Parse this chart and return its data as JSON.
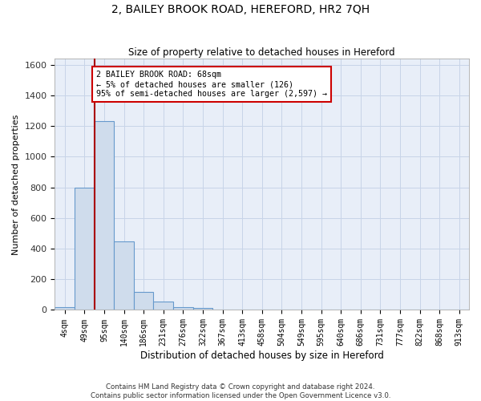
{
  "title": "2, BAILEY BROOK ROAD, HEREFORD, HR2 7QH",
  "subtitle": "Size of property relative to detached houses in Hereford",
  "xlabel": "Distribution of detached houses by size in Hereford",
  "ylabel": "Number of detached properties",
  "footer_line1": "Contains HM Land Registry data © Crown copyright and database right 2024.",
  "footer_line2": "Contains public sector information licensed under the Open Government Licence v3.0.",
  "bin_labels": [
    "4sqm",
    "49sqm",
    "95sqm",
    "140sqm",
    "186sqm",
    "231sqm",
    "276sqm",
    "322sqm",
    "367sqm",
    "413sqm",
    "458sqm",
    "504sqm",
    "549sqm",
    "595sqm",
    "640sqm",
    "686sqm",
    "731sqm",
    "777sqm",
    "822sqm",
    "868sqm",
    "913sqm"
  ],
  "bin_values": [
    20,
    800,
    1230,
    450,
    120,
    55,
    20,
    15,
    0,
    0,
    0,
    0,
    0,
    0,
    0,
    0,
    0,
    0,
    0,
    0,
    0
  ],
  "bar_color": "#cfdcec",
  "bar_edgecolor": "#6699cc",
  "redline_x": 1.5,
  "redline_color": "#aa0000",
  "annotation_line1": "2 BAILEY BROOK ROAD: 68sqm",
  "annotation_line2": "← 5% of detached houses are smaller (126)",
  "annotation_line3": "95% of semi-detached houses are larger (2,597) →",
  "annotation_box_color": "#ffffff",
  "annotation_box_edgecolor": "#cc0000",
  "ylim": [
    0,
    1640
  ],
  "yticks": [
    0,
    200,
    400,
    600,
    800,
    1000,
    1200,
    1400,
    1600
  ],
  "grid_color": "#c8d4e8",
  "background_color": "#e8eef8"
}
